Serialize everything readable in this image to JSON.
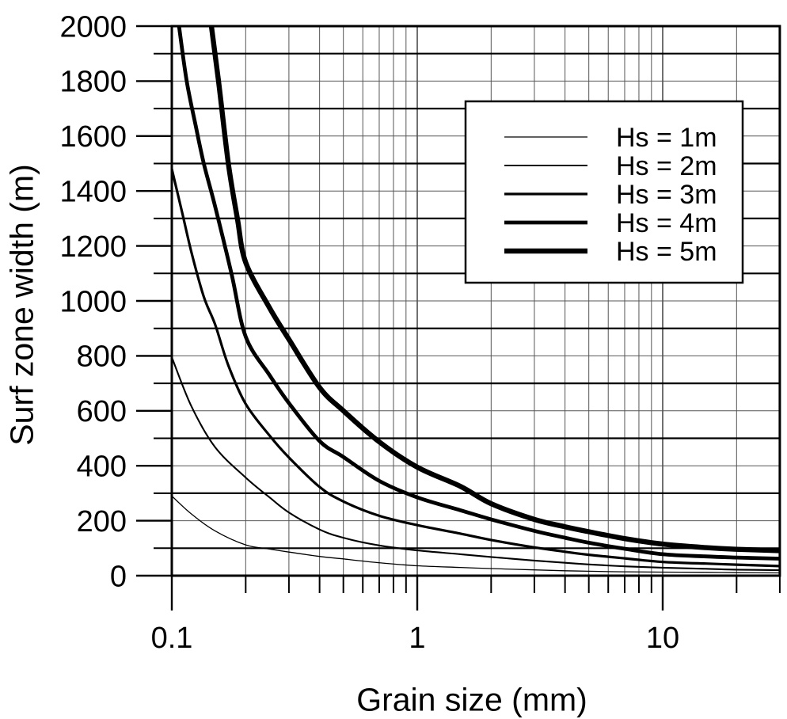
{
  "chart_data": {
    "type": "line",
    "title": "",
    "xlabel": "Grain size (mm)",
    "ylabel": "Surf zone width (m)",
    "x_scale": "log",
    "y_scale": "linear",
    "xlim": [
      0.1,
      30
    ],
    "ylim": [
      0,
      2000
    ],
    "grid": {
      "horizontal_step": 100,
      "horizontal_thick_at": "odd hundreds (100,300,...,1900)",
      "vertical_at": "log minor decades (0.2-0.9, 2-9, 20) plus 1 and 10",
      "frame": true
    },
    "x_ticks": [
      {
        "value": 0.1,
        "label": "0.1"
      },
      {
        "value": 1,
        "label": "1"
      },
      {
        "value": 10,
        "label": "10"
      }
    ],
    "x_minor_ticks": [
      0.2,
      0.3,
      0.4,
      0.5,
      0.6,
      0.7,
      0.8,
      0.9,
      2,
      3,
      4,
      5,
      6,
      7,
      8,
      9,
      20,
      30
    ],
    "y_ticks": [
      {
        "value": 0,
        "label": "0"
      },
      {
        "value": 200,
        "label": "200"
      },
      {
        "value": 400,
        "label": "400"
      },
      {
        "value": 600,
        "label": "600"
      },
      {
        "value": 800,
        "label": "800"
      },
      {
        "value": 1000,
        "label": "1000"
      },
      {
        "value": 1200,
        "label": "1200"
      },
      {
        "value": 1400,
        "label": "1400"
      },
      {
        "value": 1600,
        "label": "1600"
      },
      {
        "value": 1800,
        "label": "1800"
      },
      {
        "value": 2000,
        "label": "2000"
      }
    ],
    "y_minor_ticks": [
      100,
      300,
      500,
      700,
      900,
      1100,
      1300,
      1500,
      1700,
      1900
    ],
    "legend": {
      "position": "upper-right",
      "border_color": "#000000",
      "background": "#ffffff",
      "entries": [
        "Hs = 1m",
        "Hs = 2m",
        "Hs = 3m",
        "Hs = 4m",
        "Hs = 5m"
      ]
    },
    "colors": {
      "curve": "#000000",
      "thick_grid": "#000000",
      "thin_grid": "#555555",
      "background": "#ffffff",
      "text": "#000000"
    },
    "series": [
      {
        "name": "Hs = 1m",
        "hs_m": 1,
        "line_width": 1.3,
        "color": "#000000",
        "points": [
          [
            0.1,
            290
          ],
          [
            0.12,
            225
          ],
          [
            0.15,
            163
          ],
          [
            0.2,
            112
          ],
          [
            0.25,
            97
          ],
          [
            0.3,
            86
          ],
          [
            0.4,
            70
          ],
          [
            0.5,
            61
          ],
          [
            0.7,
            47
          ],
          [
            1,
            36
          ],
          [
            1.5,
            30
          ],
          [
            2,
            26
          ],
          [
            3,
            21
          ],
          [
            4,
            18
          ],
          [
            5,
            16
          ],
          [
            7,
            14
          ],
          [
            10,
            13
          ],
          [
            15,
            12
          ],
          [
            20,
            11
          ],
          [
            30,
            10
          ]
        ]
      },
      {
        "name": "Hs = 2m",
        "hs_m": 2,
        "line_width": 2.1,
        "color": "#000000",
        "points": [
          [
            0.1,
            795
          ],
          [
            0.12,
            618
          ],
          [
            0.15,
            468
          ],
          [
            0.2,
            357
          ],
          [
            0.25,
            285
          ],
          [
            0.3,
            230
          ],
          [
            0.4,
            168
          ],
          [
            0.5,
            138
          ],
          [
            0.7,
            110
          ],
          [
            1,
            92
          ],
          [
            1.5,
            78
          ],
          [
            2,
            68
          ],
          [
            3,
            55
          ],
          [
            4,
            47
          ],
          [
            5,
            41
          ],
          [
            7,
            34
          ],
          [
            10,
            29
          ],
          [
            15,
            25
          ],
          [
            20,
            22
          ],
          [
            30,
            20
          ]
        ]
      },
      {
        "name": "Hs = 3m",
        "hs_m": 3,
        "line_width": 3.2,
        "color": "#000000",
        "points": [
          [
            0.1,
            1480
          ],
          [
            0.11,
            1325
          ],
          [
            0.12,
            1180
          ],
          [
            0.135,
            1015
          ],
          [
            0.15,
            915
          ],
          [
            0.17,
            765
          ],
          [
            0.2,
            625
          ],
          [
            0.25,
            510
          ],
          [
            0.3,
            430
          ],
          [
            0.4,
            323
          ],
          [
            0.5,
            270
          ],
          [
            0.7,
            218
          ],
          [
            1,
            184
          ],
          [
            1.5,
            153
          ],
          [
            2,
            130
          ],
          [
            3,
            103
          ],
          [
            4,
            87
          ],
          [
            5,
            76
          ],
          [
            7,
            63
          ],
          [
            10,
            50
          ],
          [
            15,
            44
          ],
          [
            20,
            40
          ],
          [
            30,
            35
          ]
        ]
      },
      {
        "name": "Hs = 4m",
        "hs_m": 4,
        "line_width": 4.8,
        "color": "#000000",
        "points": [
          [
            0.107,
            2000
          ],
          [
            0.115,
            1800
          ],
          [
            0.125,
            1640
          ],
          [
            0.135,
            1500
          ],
          [
            0.15,
            1345
          ],
          [
            0.175,
            1100
          ],
          [
            0.2,
            870
          ],
          [
            0.25,
            730
          ],
          [
            0.3,
            628
          ],
          [
            0.4,
            490
          ],
          [
            0.5,
            432
          ],
          [
            0.7,
            345
          ],
          [
            1,
            285
          ],
          [
            1.5,
            238
          ],
          [
            2,
            205
          ],
          [
            3,
            163
          ],
          [
            4,
            138
          ],
          [
            5,
            120
          ],
          [
            7,
            98
          ],
          [
            10,
            78
          ],
          [
            15,
            70
          ],
          [
            20,
            66
          ],
          [
            30,
            62
          ]
        ]
      },
      {
        "name": "Hs = 5m",
        "hs_m": 5,
        "line_width": 6.4,
        "color": "#000000",
        "points": [
          [
            0.145,
            2000
          ],
          [
            0.155,
            1800
          ],
          [
            0.17,
            1500
          ],
          [
            0.185,
            1300
          ],
          [
            0.2,
            1140
          ],
          [
            0.25,
            975
          ],
          [
            0.3,
            860
          ],
          [
            0.4,
            685
          ],
          [
            0.5,
            600
          ],
          [
            0.7,
            487
          ],
          [
            1,
            395
          ],
          [
            1.5,
            325
          ],
          [
            2,
            262
          ],
          [
            3,
            205
          ],
          [
            4,
            178
          ],
          [
            5,
            160
          ],
          [
            7,
            135
          ],
          [
            10,
            115
          ],
          [
            15,
            102
          ],
          [
            20,
            96
          ],
          [
            30,
            91
          ]
        ]
      }
    ]
  }
}
